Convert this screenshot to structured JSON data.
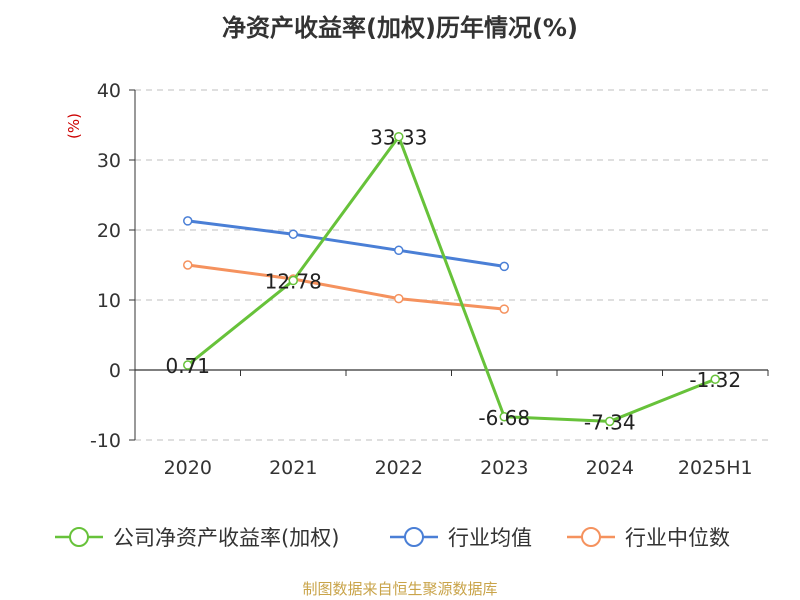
{
  "chart_data": {
    "type": "line",
    "title": "净资产收益率(加权)历年情况(%)",
    "ylabel": "(%)",
    "categories": [
      "2020",
      "2021",
      "2022",
      "2023",
      "2024",
      "2025H1"
    ],
    "ylim": [
      -10,
      40
    ],
    "yticks": [
      -10,
      0,
      10,
      20,
      30,
      40
    ],
    "grid": true,
    "legend_position": "bottom",
    "series": [
      {
        "name": "公司净资产收益率(加权)",
        "color": "#67c23a",
        "values": [
          0.71,
          12.78,
          33.33,
          -6.68,
          -7.34,
          -1.32
        ],
        "labels": [
          "0.71",
          "12.78",
          "33.33",
          "-6.68",
          "-7.34",
          "-1.32"
        ]
      },
      {
        "name": "行业均值",
        "color": "#4a7fd6",
        "values": [
          21.3,
          19.4,
          17.1,
          14.8,
          null,
          null
        ]
      },
      {
        "name": "行业中位数",
        "color": "#f5925e",
        "values": [
          15.0,
          13.0,
          10.2,
          8.7,
          null,
          null
        ]
      }
    ]
  },
  "footer": {
    "source": "制图数据来自恒生聚源数据库"
  }
}
